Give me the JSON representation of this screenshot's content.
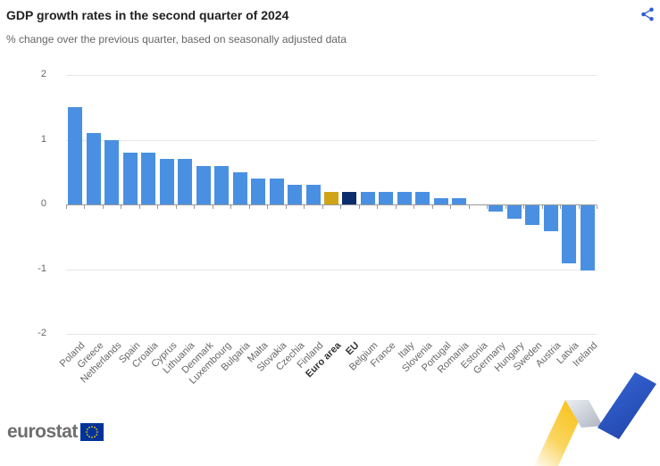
{
  "header": {
    "title": "GDP growth rates in the second quarter of 2024",
    "subtitle": "% change over the previous quarter, based on seasonally adjusted data"
  },
  "toolbar": {
    "share_label": "Share"
  },
  "footer": {
    "logo_text": "eurostat"
  },
  "colors": {
    "bar_default": "#4a90e2",
    "bar_euro_area": "#d0a417",
    "bar_eu": "#0c2d6d",
    "gridline": "#e6e6e6",
    "axis_line": "#999999",
    "tick": "#999999",
    "axis_label": "#666666",
    "axis_label_emphasis": "#333333",
    "title_text": "#222222",
    "subtitle_text": "#666666",
    "share_icon": "#2b5cd3",
    "logo_text": "#6e6e6e",
    "flag_blue": "#003399",
    "flag_stars": "#ffcc00",
    "ribbon_yellow": "#f8c21a",
    "ribbon_blue_top": "#3565d6",
    "ribbon_blue_bottom": "#2144a8",
    "ribbon_gray_light": "#eceef2",
    "ribbon_gray_dark": "#aeb5c2"
  },
  "chart_data": {
    "type": "bar",
    "title": "GDP growth rates in the second quarter of 2024",
    "subtitle": "% change over the previous quarter, based on seasonally adjusted data",
    "xlabel": "",
    "ylabel": "",
    "ylim": [
      -2,
      2
    ],
    "yticks": [
      2,
      1,
      0,
      -1,
      -2
    ],
    "grid": true,
    "legend": "none",
    "categories": [
      "Poland",
      "Greece",
      "Netherlands",
      "Spain",
      "Croatia",
      "Cyprus",
      "Lithuania",
      "Denmark",
      "Luxembourg",
      "Bulgaria",
      "Malta",
      "Slovakia",
      "Czechia",
      "Finland",
      "Euro area",
      "EU",
      "Belgium",
      "France",
      "Italy",
      "Slovenia",
      "Portugal",
      "Romania",
      "Estonia",
      "Germany",
      "Hungary",
      "Sweden",
      "Austria",
      "Latvia",
      "Ireland"
    ],
    "values": [
      1.5,
      1.1,
      1.0,
      0.8,
      0.8,
      0.7,
      0.7,
      0.6,
      0.6,
      0.5,
      0.4,
      0.4,
      0.3,
      0.3,
      0.2,
      0.2,
      0.2,
      0.2,
      0.2,
      0.2,
      0.1,
      0.1,
      0.0,
      -0.1,
      -0.2,
      -0.3,
      -0.4,
      -0.9,
      -1.0
    ],
    "highlight_styles": {
      "Euro area": "euro_area",
      "EU": "eu"
    },
    "emphasized_labels": [
      "Euro area",
      "EU"
    ]
  }
}
